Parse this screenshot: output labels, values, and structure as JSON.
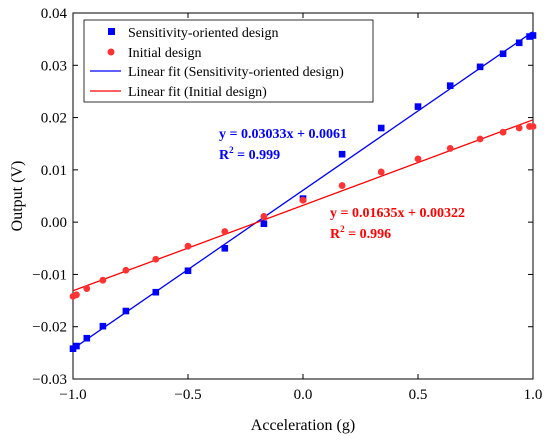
{
  "chart_data": {
    "type": "scatter",
    "xlabel": "Acceleration (g)",
    "ylabel": "Output (V)",
    "xlim": [
      -1.0,
      1.0
    ],
    "ylim": [
      -0.03,
      0.04
    ],
    "xticks": [
      -1.0,
      -0.5,
      0.0,
      0.5,
      1.0
    ],
    "xtick_labels": [
      "−1.0",
      "−0.5",
      "0.0",
      "0.5",
      "1.0"
    ],
    "yticks": [
      -0.03,
      -0.02,
      -0.01,
      0.0,
      0.01,
      0.02,
      0.03,
      0.04
    ],
    "ytick_labels": [
      "−0.03",
      "−0.02",
      "−0.01",
      "0.00",
      "0.01",
      "0.02",
      "0.03",
      "0.04"
    ],
    "grid": false,
    "legend_position": "top-left",
    "series": [
      {
        "name": "Sensitivity-oriented design",
        "marker": "square",
        "color": "#0000ff",
        "points": [
          [
            -1.0,
            -0.0242
          ],
          [
            -0.985,
            -0.0237
          ],
          [
            -0.94,
            -0.0222
          ],
          [
            -0.87,
            -0.0199
          ],
          [
            -0.77,
            -0.017
          ],
          [
            -0.64,
            -0.0134
          ],
          [
            -0.5,
            -0.0093
          ],
          [
            -0.34,
            -0.005
          ],
          [
            -0.17,
            -0.0003
          ],
          [
            0.0,
            0.0045
          ],
          [
            0.17,
            0.013
          ],
          [
            0.34,
            0.018
          ],
          [
            0.5,
            0.0221
          ],
          [
            0.64,
            0.0261
          ],
          [
            0.77,
            0.0297
          ],
          [
            0.87,
            0.0322
          ],
          [
            0.94,
            0.0343
          ],
          [
            0.985,
            0.0355
          ],
          [
            1.0,
            0.0357
          ]
        ]
      },
      {
        "name": "Initial design",
        "marker": "circle",
        "color": "#ff0000",
        "points": [
          [
            -1.0,
            -0.0142
          ],
          [
            -0.985,
            -0.0139
          ],
          [
            -0.94,
            -0.0127
          ],
          [
            -0.87,
            -0.0111
          ],
          [
            -0.77,
            -0.0092
          ],
          [
            -0.64,
            -0.0071
          ],
          [
            -0.5,
            -0.0046
          ],
          [
            -0.34,
            -0.0018
          ],
          [
            -0.17,
            0.0011
          ],
          [
            0.0,
            0.0042
          ],
          [
            0.17,
            0.007
          ],
          [
            0.34,
            0.0096
          ],
          [
            0.5,
            0.0121
          ],
          [
            0.64,
            0.0141
          ],
          [
            0.77,
            0.0159
          ],
          [
            0.87,
            0.0172
          ],
          [
            0.94,
            0.018
          ],
          [
            0.985,
            0.0183
          ],
          [
            1.0,
            0.0183
          ]
        ]
      }
    ],
    "fits": [
      {
        "name": "Linear fit (Sensitivity-oriented design)",
        "color": "#0000ff",
        "slope": 0.03033,
        "intercept": 0.0061,
        "equation": "y = 0.03033x + 0.0061",
        "r2_label": "R",
        "r2_value": " = 0.999"
      },
      {
        "name": "Linear fit (Initial design)",
        "color": "#ff0000",
        "slope": 0.01635,
        "intercept": 0.00322,
        "equation": "y = 0.01635x + 0.00322",
        "r2_label": "R",
        "r2_value": " = 0.996"
      }
    ]
  }
}
